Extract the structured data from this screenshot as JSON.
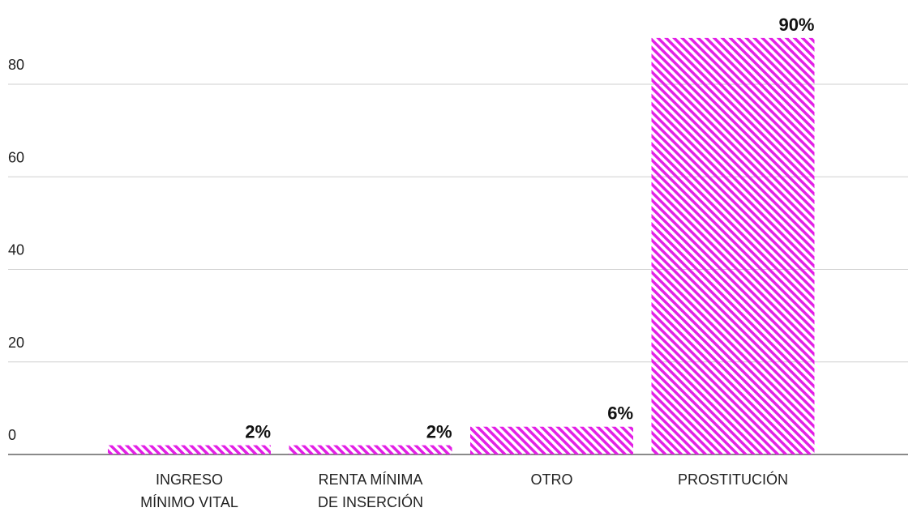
{
  "chart_data": {
    "type": "bar",
    "categories": [
      "INGRESO\nMÍNIMO VITAL",
      "RENTA MÍNIMA\nDE INSERCIÓN",
      "OTRO",
      "PROSTITUCIÓN"
    ],
    "values": [
      2,
      2,
      6,
      90
    ],
    "value_labels": [
      "2%",
      "2%",
      "6%",
      "90%"
    ],
    "color": "#e31fe6",
    "ylim": [
      0,
      98
    ],
    "yticks": [
      0,
      20,
      40,
      60,
      80
    ],
    "grid": true
  }
}
